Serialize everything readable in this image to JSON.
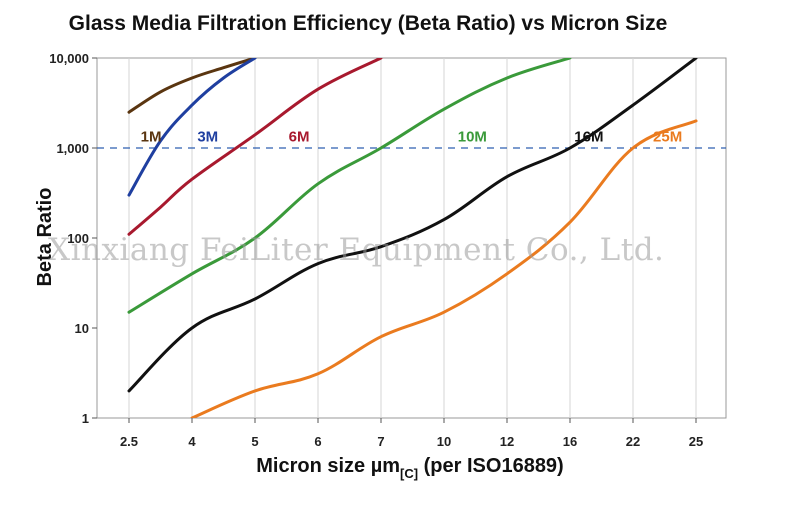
{
  "chart_data": {
    "type": "line",
    "title": "Glass Media Filtration Efficiency (Beta Ratio) vs Micron Size",
    "xlabel_main": "Micron size µm",
    "xlabel_sub": "[C]",
    "xlabel_tail": " (per ISO16889)",
    "ylabel": "Beta Ratio",
    "y_scale": "log",
    "ylim": [
      1,
      10000
    ],
    "categories": [
      "2.5",
      "4",
      "5",
      "6",
      "7",
      "10",
      "12",
      "16",
      "22",
      "25"
    ],
    "y_ticks": [
      "1",
      "10",
      "100",
      "1,000",
      "10,000"
    ],
    "reference_line": {
      "value": 1000,
      "style": "dashed",
      "color": "#2f5fb0"
    },
    "grid": "vertical",
    "series": [
      {
        "name": "1M",
        "color": "#5a3510",
        "points": [
          [
            0,
            2500
          ],
          [
            0.5,
            4200
          ],
          [
            1,
            6000
          ],
          [
            1.5,
            7800
          ],
          [
            2,
            10000
          ]
        ]
      },
      {
        "name": "3M",
        "color": "#1f3fa0",
        "points": [
          [
            0,
            300
          ],
          [
            0.5,
            1200
          ],
          [
            1,
            3000
          ],
          [
            1.5,
            6000
          ],
          [
            2,
            10000
          ]
        ]
      },
      {
        "name": "6M",
        "color": "#a8192e",
        "points": [
          [
            0,
            110
          ],
          [
            0.5,
            220
          ],
          [
            1,
            450
          ],
          [
            2,
            1400
          ],
          [
            3,
            4500
          ],
          [
            4,
            10000
          ]
        ]
      },
      {
        "name": "10M",
        "color": "#3a9a3a",
        "points": [
          [
            0,
            15
          ],
          [
            1,
            40
          ],
          [
            2,
            100
          ],
          [
            3,
            400
          ],
          [
            4,
            1000
          ],
          [
            5,
            2700
          ],
          [
            6,
            6000
          ],
          [
            7,
            10000
          ]
        ]
      },
      {
        "name": "16M",
        "color": "#111111",
        "points": [
          [
            0,
            2
          ],
          [
            1,
            10
          ],
          [
            2,
            21
          ],
          [
            3,
            52
          ],
          [
            4,
            80
          ],
          [
            5,
            160
          ],
          [
            6,
            480
          ],
          [
            7,
            1000
          ],
          [
            8,
            3000
          ],
          [
            9,
            10000
          ]
        ]
      },
      {
        "name": "25M",
        "color": "#ea7b1f",
        "points": [
          [
            1,
            1
          ],
          [
            2,
            2
          ],
          [
            3,
            3.1
          ],
          [
            4,
            8
          ],
          [
            5,
            15
          ],
          [
            6,
            40
          ],
          [
            7,
            150
          ],
          [
            8,
            1000
          ],
          [
            9,
            2000
          ]
        ]
      }
    ],
    "series_labels": [
      {
        "name": "1M",
        "color": "#5a3510",
        "at": [
          0.35,
          1350
        ]
      },
      {
        "name": "3M",
        "color": "#1f3fa0",
        "at": [
          1.25,
          1350
        ]
      },
      {
        "name": "6M",
        "color": "#a8192e",
        "at": [
          2.7,
          1350
        ]
      },
      {
        "name": "10M",
        "color": "#3a9a3a",
        "at": [
          5.45,
          1350
        ]
      },
      {
        "name": "16M",
        "color": "#111111",
        "at": [
          7.3,
          1350
        ]
      },
      {
        "name": "25M",
        "color": "#ea7b1f",
        "at": [
          8.55,
          1350
        ]
      }
    ]
  },
  "watermark": "Xinxiang FeiLiter Equipment Co., Ltd."
}
